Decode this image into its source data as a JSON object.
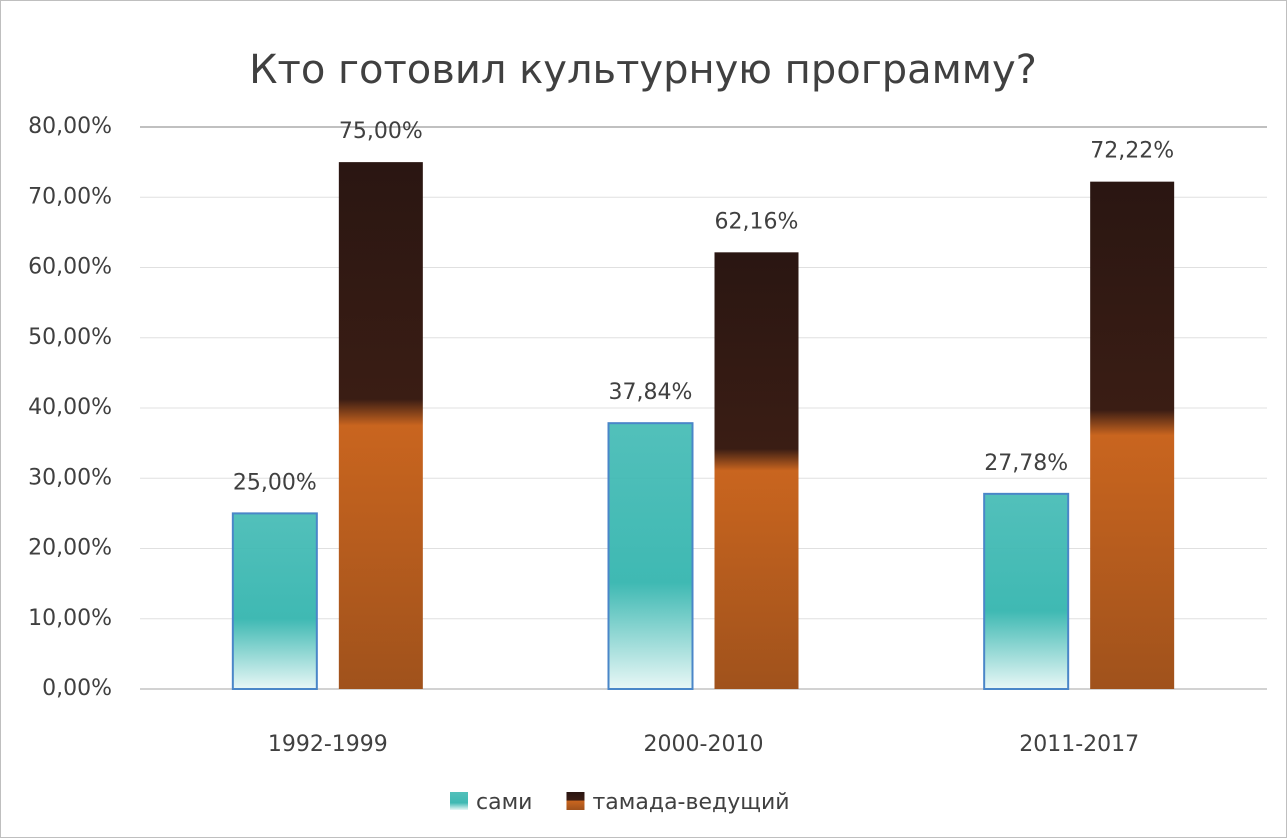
{
  "chart_data": {
    "type": "bar",
    "title": "Кто готовил культурную программу?",
    "categories": [
      "1992-1999",
      "2000-2010",
      "2011-2017"
    ],
    "series": [
      {
        "name": "сами",
        "color": "#3fb9b3",
        "values": [
          25,
          37.84,
          27.78
        ],
        "value_labels": [
          "25,00%",
          "37,84%",
          "27,78%"
        ]
      },
      {
        "name": "тамада-ведущий",
        "color": "#c9651f",
        "values": [
          75,
          62.16,
          72.22
        ],
        "value_labels": [
          "75,00%",
          "62,16%",
          "72,22%"
        ]
      }
    ],
    "ylim": [
      0,
      80
    ],
    "yticks": [
      {
        "value": 0,
        "label": "0,00%"
      },
      {
        "value": 10,
        "label": "10,00%"
      },
      {
        "value": 20,
        "label": "20,00%"
      },
      {
        "value": 30,
        "label": "30,00%"
      },
      {
        "value": 40,
        "label": "40,00%"
      },
      {
        "value": 50,
        "label": "50,00%"
      },
      {
        "value": 60,
        "label": "60,00%"
      },
      {
        "value": 70,
        "label": "70,00%"
      },
      {
        "value": 80,
        "label": "80,00%"
      }
    ],
    "grid": true,
    "legend": "bottom"
  }
}
